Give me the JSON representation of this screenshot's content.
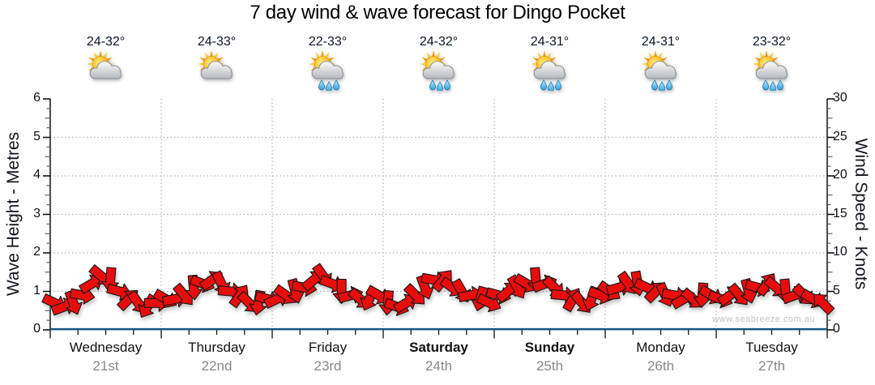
{
  "title": "7 day wind & wave forecast for Dingo Pocket",
  "watermark": "www.seabreeze.com.au",
  "axes": {
    "left": {
      "label": "Wave Height - Metres",
      "ticks": [
        0,
        1,
        2,
        3,
        4,
        5,
        6
      ],
      "range": [
        0,
        6
      ]
    },
    "right": {
      "label": "Wind Speed - Knots",
      "ticks": [
        0,
        5,
        10,
        15,
        20,
        25,
        30
      ],
      "range": [
        0,
        30
      ]
    }
  },
  "days": [
    {
      "name": "Wednesday",
      "date": "21st",
      "temp": "24-32°",
      "icon": "partly-cloudy",
      "weekend": false
    },
    {
      "name": "Thursday",
      "date": "22nd",
      "temp": "24-33°",
      "icon": "partly-cloudy",
      "weekend": false
    },
    {
      "name": "Friday",
      "date": "23rd",
      "temp": "22-33°",
      "icon": "sun-showers",
      "weekend": false
    },
    {
      "name": "Saturday",
      "date": "24th",
      "temp": "24-32°",
      "icon": "sun-showers",
      "weekend": true
    },
    {
      "name": "Sunday",
      "date": "25th",
      "temp": "24-31°",
      "icon": "sun-showers",
      "weekend": true
    },
    {
      "name": "Monday",
      "date": "26th",
      "temp": "24-31°",
      "icon": "sun-showers",
      "weekend": false
    },
    {
      "name": "Tuesday",
      "date": "27th",
      "temp": "23-32°",
      "icon": "sun-showers",
      "weekend": false
    }
  ],
  "chart_data": {
    "type": "wind-arrows+line",
    "x_description": "7 days, one sample every 2 hours (12 per day, 84 total)",
    "wind_speed_knots": [
      3.5,
      3,
      3.5,
      4.5,
      6,
      7,
      6.5,
      5,
      4,
      3.5,
      3,
      3.5,
      4,
      4,
      4.5,
      5.5,
      6,
      6.5,
      6,
      5,
      4.5,
      3.5,
      3.5,
      4,
      4,
      4.5,
      5,
      5.5,
      6.5,
      7,
      6,
      5,
      4.5,
      4,
      4,
      4.5,
      3.5,
      3,
      3.5,
      4.5,
      5.5,
      6.5,
      6.5,
      5.5,
      5,
      4.5,
      4,
      3.5,
      4.5,
      5,
      5.5,
      6,
      6.5,
      6,
      5.5,
      4.5,
      4,
      3.5,
      4,
      4.5,
      5,
      5.5,
      6,
      6,
      5.5,
      5,
      4.5,
      4.5,
      4,
      4,
      4.5,
      4.5,
      4,
      4.5,
      4.5,
      5,
      5.5,
      6,
      5.5,
      5,
      4.5,
      4.5,
      4,
      3.5
    ],
    "arrow_angles_deg": [
      25,
      -20,
      70,
      10,
      -30,
      40,
      95,
      15,
      -45,
      55,
      120,
      0,
      30,
      -10,
      50,
      85,
      20,
      -35,
      65,
      5,
      -55,
      45,
      100,
      15,
      -25,
      35,
      75,
      10,
      -40,
      55,
      20,
      90,
      -15,
      40,
      115,
      30,
      95,
      20,
      -30,
      45,
      70,
      10,
      -50,
      35,
      60,
      -10,
      105,
      25,
      15,
      -40,
      60,
      30,
      85,
      -20,
      45,
      5,
      -60,
      50,
      110,
      20,
      35,
      -15,
      55,
      80,
      25,
      -45,
      65,
      10,
      -30,
      40,
      95,
      30,
      20,
      -35,
      50,
      75,
      15,
      -55,
      40,
      85,
      -20,
      45,
      30,
      -135
    ],
    "angle_convention": "0 = pointing right (east), positive = clockwise",
    "wave_height_m_approx": 0.05,
    "left_axis_range_m": [
      0,
      6
    ],
    "right_axis_range_knots": [
      0,
      30
    ],
    "grid": "dotted horizontal line each metre (1-5), dotted vertical line at each day boundary"
  },
  "colors": {
    "arrow_fill": "#e81010",
    "arrow_stroke": "#141414",
    "wave_line": "#15567d",
    "grid": "#b4b4b4",
    "axis": "#111111",
    "date_text": "#888888",
    "temp_text": "#0b1526",
    "watermark": "#c3c3c3"
  }
}
